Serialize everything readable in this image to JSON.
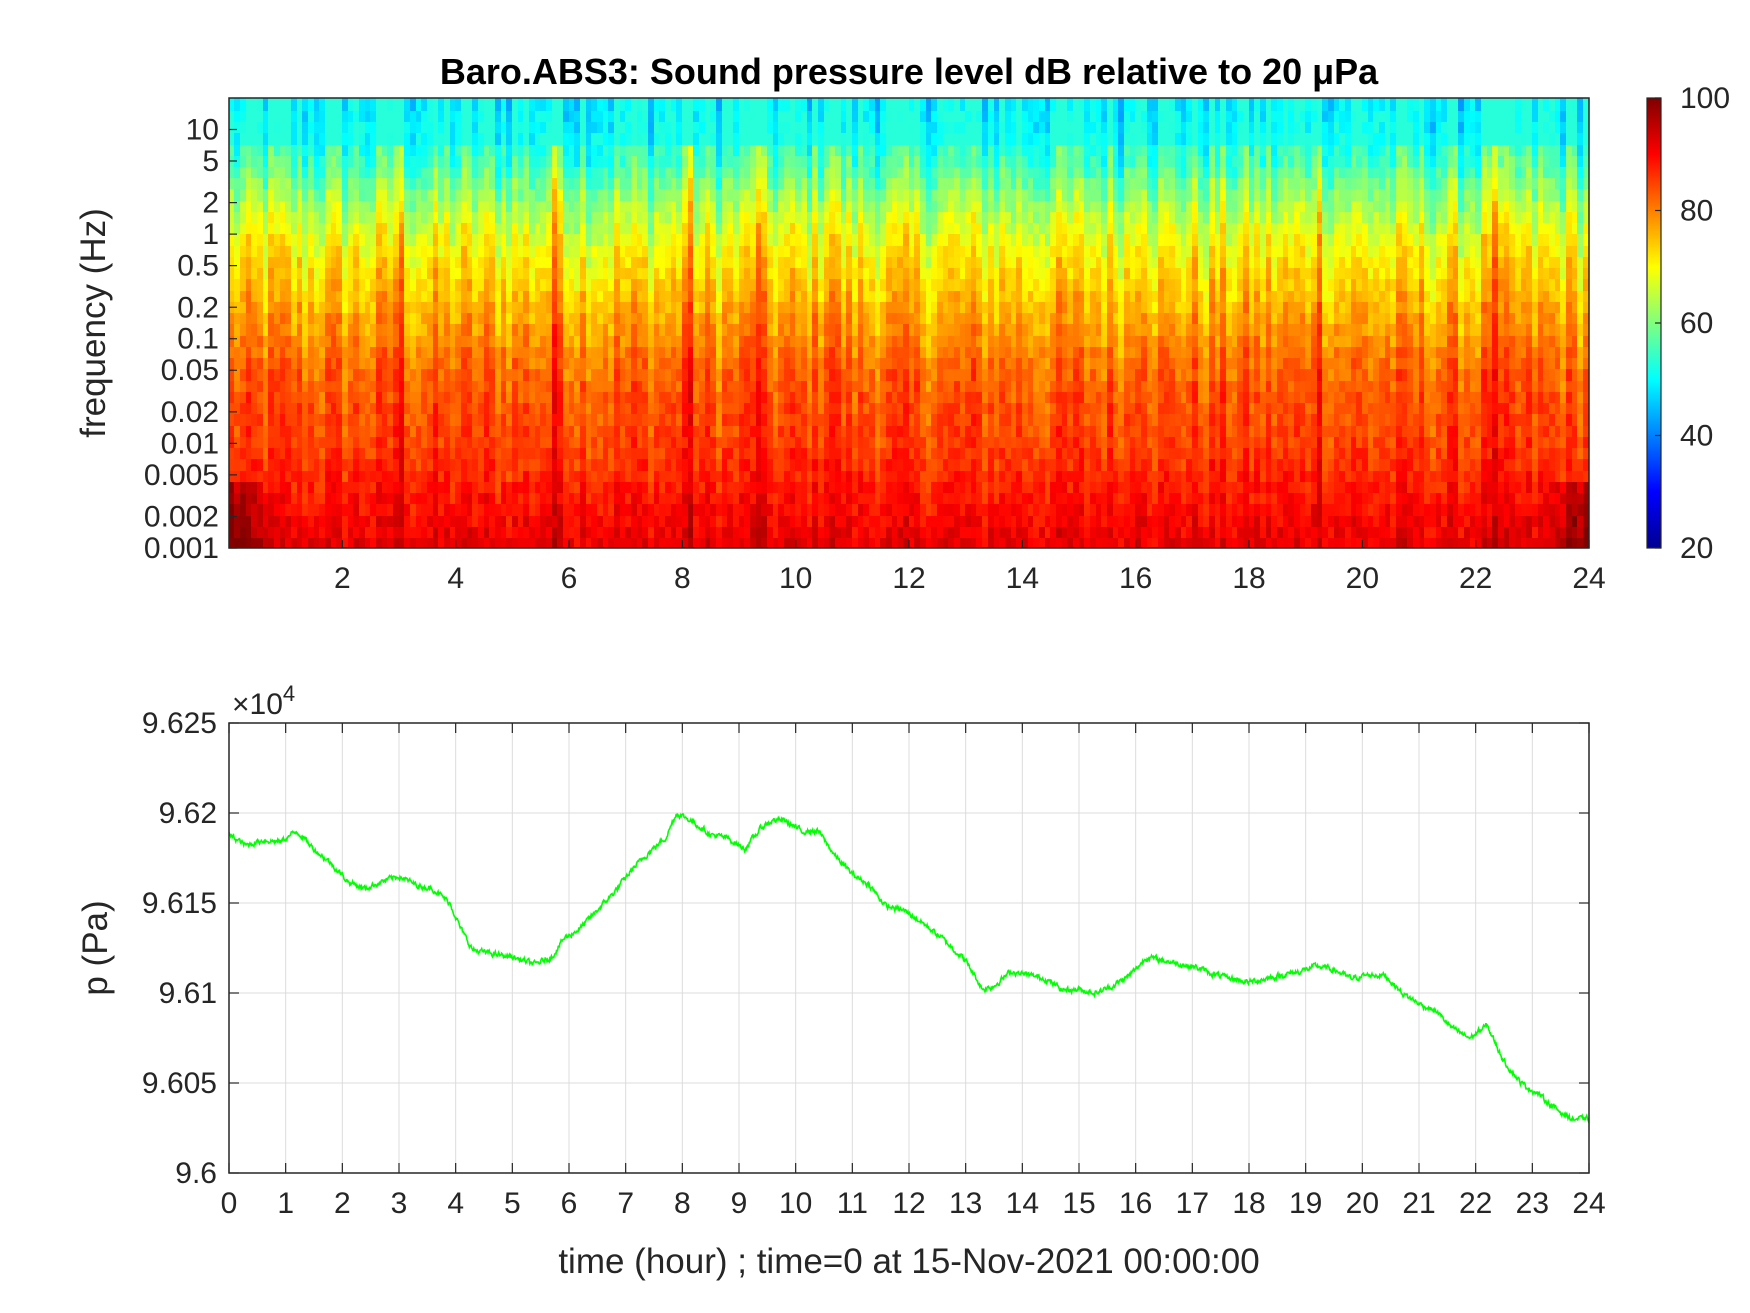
{
  "chart_data": [
    {
      "type": "heatmap",
      "title": "Baro.ABS3: Sound pressure level dB relative to 20 μPa",
      "ylabel": "frequency (Hz)",
      "xlabel": "",
      "x_ticks": [
        "2",
        "4",
        "6",
        "8",
        "10",
        "12",
        "14",
        "16",
        "18",
        "20",
        "22",
        "24"
      ],
      "xlim": [
        0,
        24
      ],
      "ylim": [
        0.001,
        20
      ],
      "yscale": "log",
      "y_ticks": [
        "10",
        "5",
        "2",
        "1",
        "0.5",
        "0.2",
        "0.1",
        "0.05",
        "0.02",
        "0.01",
        "0.005",
        "0.002",
        "0.001"
      ],
      "colorbar": {
        "ticks": [
          "100",
          "80",
          "60",
          "40",
          "20"
        ],
        "range": [
          20,
          100
        ],
        "colormap": "jet"
      },
      "grid": false,
      "mean_level_db_by_frequency": [
        {
          "f": 0.001,
          "db": 92
        },
        {
          "f": 0.002,
          "db": 90
        },
        {
          "f": 0.005,
          "db": 87
        },
        {
          "f": 0.01,
          "db": 85
        },
        {
          "f": 0.02,
          "db": 84
        },
        {
          "f": 0.05,
          "db": 82
        },
        {
          "f": 0.1,
          "db": 79
        },
        {
          "f": 0.2,
          "db": 76
        },
        {
          "f": 0.5,
          "db": 72
        },
        {
          "f": 1,
          "db": 68
        },
        {
          "f": 2,
          "db": 63
        },
        {
          "f": 5,
          "db": 55
        },
        {
          "f": 10,
          "db": 52
        },
        {
          "f": 20,
          "db": 50
        }
      ],
      "bright_bands_hours": [
        3.0,
        5.8,
        8.1,
        9.3,
        10.6,
        16.1,
        19.2,
        22.3
      ]
    },
    {
      "type": "line",
      "title": "",
      "xlabel": "time (hour) ; time=0 at 15-Nov-2021 00:00:00",
      "ylabel": "p (Pa)",
      "exponent_label": "×10",
      "exponent_power": "4",
      "xlim": [
        0,
        24
      ],
      "ylim": [
        96000,
        96250
      ],
      "x_ticks": [
        "0",
        "1",
        "2",
        "3",
        "4",
        "5",
        "6",
        "7",
        "8",
        "9",
        "10",
        "11",
        "12",
        "13",
        "14",
        "15",
        "16",
        "17",
        "18",
        "19",
        "20",
        "21",
        "22",
        "23",
        "24"
      ],
      "y_ticks": [
        "9.625",
        "9.62",
        "9.615",
        "9.61",
        "9.605",
        "9.6"
      ],
      "grid": true,
      "series": [
        {
          "color": "#00ff00",
          "x": [
            0,
            0.3,
            0.6,
            0.9,
            1.2,
            1.5,
            1.8,
            2.1,
            2.4,
            2.7,
            3.0,
            3.3,
            3.6,
            3.9,
            4.1,
            4.3,
            4.6,
            5.0,
            5.4,
            5.7,
            5.9,
            6.2,
            6.5,
            6.8,
            7.1,
            7.4,
            7.7,
            7.9,
            8.2,
            8.5,
            8.8,
            9.1,
            9.4,
            9.6,
            9.8,
            10.1,
            10.4,
            10.7,
            11.0,
            11.3,
            11.6,
            11.9,
            12.2,
            12.6,
            13.0,
            13.3,
            13.5,
            13.8,
            14.1,
            14.4,
            14.7,
            15.0,
            15.3,
            15.6,
            15.9,
            16.2,
            16.5,
            16.8,
            17.1,
            17.4,
            17.7,
            18.0,
            18.3,
            18.6,
            18.9,
            19.2,
            19.5,
            19.8,
            20.1,
            20.4,
            20.7,
            21.0,
            21.3,
            21.6,
            21.9,
            22.2,
            22.5,
            22.8,
            23.1,
            23.4,
            23.7,
            24.0
          ],
          "y": [
            96188,
            96182,
            96185,
            96184,
            96190,
            96180,
            96172,
            96162,
            96158,
            96162,
            96165,
            96160,
            96158,
            96150,
            96135,
            96124,
            96122,
            96120,
            96116,
            96120,
            96130,
            96136,
            96146,
            96156,
            96168,
            96178,
            96186,
            96200,
            96195,
            96188,
            96186,
            96180,
            96192,
            96196,
            96196,
            96190,
            96190,
            96176,
            96166,
            96160,
            96148,
            96146,
            96140,
            96130,
            96118,
            96102,
            96104,
            96112,
            96110,
            96108,
            96102,
            96102,
            96100,
            96104,
            96110,
            96120,
            96118,
            96116,
            96114,
            96110,
            96108,
            96106,
            96108,
            96110,
            96112,
            96115,
            96113,
            96108,
            96110,
            96110,
            96100,
            96094,
            96090,
            96080,
            96075,
            96082,
            96062,
            96050,
            96044,
            96036,
            96030,
            96030
          ]
        }
      ]
    }
  ]
}
